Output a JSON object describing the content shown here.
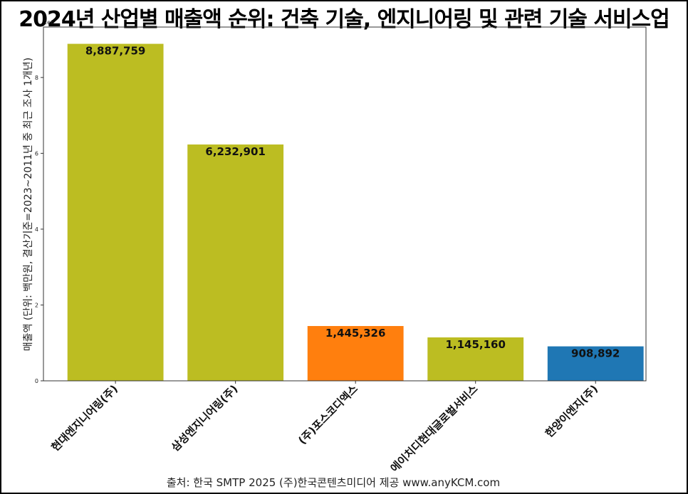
{
  "chart_data": {
    "type": "bar",
    "title": "2024년 산업별 매출액 순위: 건축 기술, 엔지니어링 및 관련 기술 서비스업",
    "ylabel": "매출액 (단위: 백만원, 결산기준=2023~2011년 중 최근 조사 1개년)",
    "xlabel": "",
    "y_offset_text": "1e6",
    "ylim": [
      0,
      9330000
    ],
    "y_ticks": [
      0,
      2000000,
      4000000,
      6000000,
      8000000
    ],
    "y_tick_labels": [
      "0",
      "2",
      "4",
      "6",
      "8"
    ],
    "categories": [
      "현대엔지니어링(주)",
      "삼성엔지니어링(주)",
      "(주)포스코디엑스",
      "에이치디현대글로벌서비스",
      "한양이엔지(주)"
    ],
    "values": [
      8887759,
      6232901,
      1445326,
      1145160,
      908892
    ],
    "value_labels": [
      "8,887,759",
      "6,232,901",
      "1,445,326",
      "1,145,160",
      "908,892"
    ],
    "bar_colors": [
      "#bcbd22",
      "#bcbd22",
      "#ff7f0e",
      "#bcbd22",
      "#1f77b4"
    ],
    "grid": false,
    "source": "출처: 한국 SMTP 2025  (주)한국콘텐츠미디어 제공  www.anyKCM.com"
  }
}
